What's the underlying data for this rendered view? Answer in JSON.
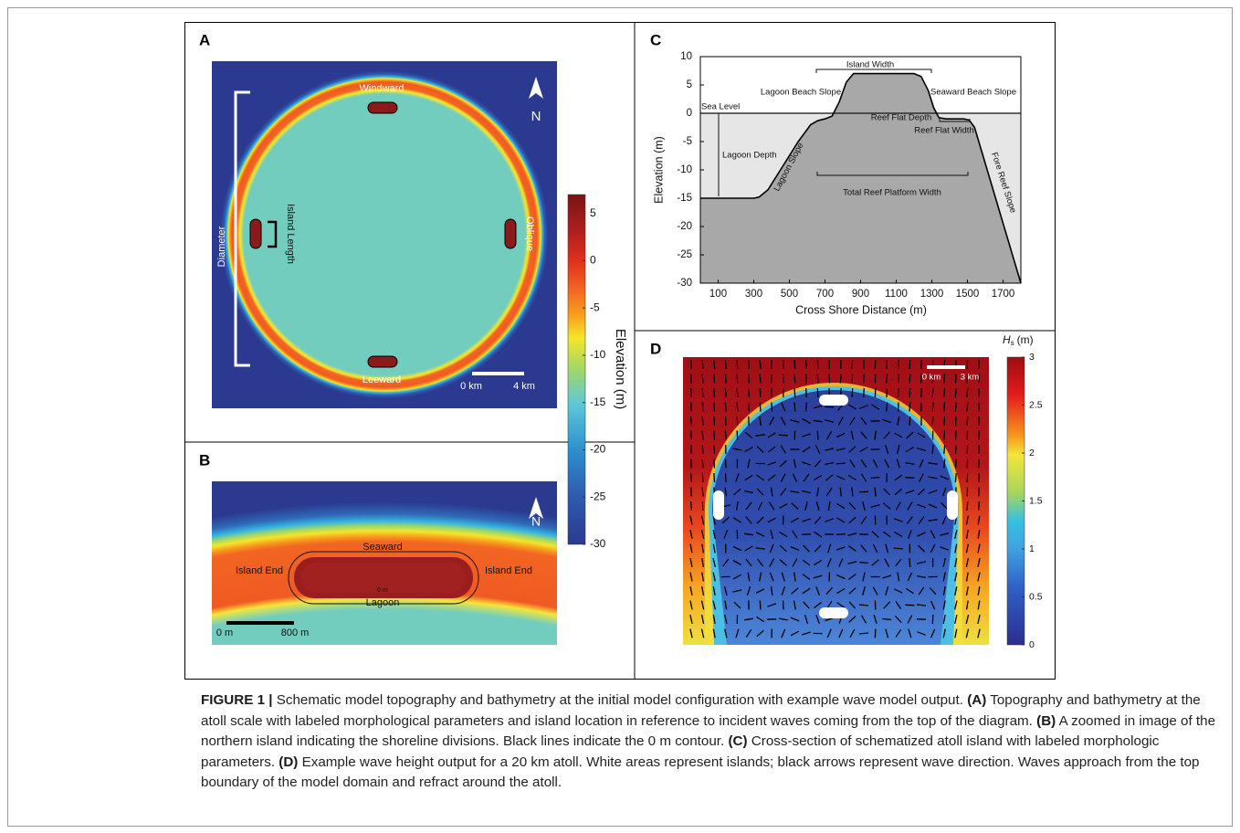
{
  "panel_a": {
    "letter": "A",
    "windward": "Windward",
    "leeward": "Leeward",
    "oblique": "Oblique",
    "island_length": "Island Length",
    "diameter": "Diameter",
    "north": "N",
    "scale_start": "0 km",
    "scale_end": "4 km"
  },
  "elevation_colorbar": {
    "label": "Elevation (m)",
    "lim": [
      -30,
      7
    ],
    "ticks": [
      5,
      0,
      -5,
      -10,
      -15,
      -20,
      -25,
      -30
    ]
  },
  "panel_b": {
    "letter": "B",
    "north": "N",
    "seaward": "Seaward",
    "lagoon": "Lagoon",
    "island_end_left": "Island End",
    "island_end_right": "Island End",
    "contour_label": "0 m",
    "scale_start": "0 m",
    "scale_end": "800 m"
  },
  "panel_c": {
    "letter": "C",
    "x_label": "Cross Shore Distance (m)",
    "y_label": "Elevation (m)",
    "xlim": [
      0,
      1800
    ],
    "ylim": [
      -30,
      10
    ],
    "xticks": [
      100,
      300,
      500,
      700,
      900,
      1100,
      1300,
      1500,
      1700
    ],
    "yticks": [
      10,
      5,
      0,
      -5,
      -10,
      -15,
      -20,
      -25,
      -30
    ],
    "sea_level": 0,
    "profile": {
      "x": [
        0,
        300,
        330,
        380,
        450,
        550,
        620,
        660,
        700,
        740,
        780,
        820,
        860,
        900,
        1200,
        1240,
        1280,
        1310,
        1340,
        1380,
        1480,
        1510,
        1540,
        1800
      ],
      "y": [
        -15,
        -15,
        -14.8,
        -13.5,
        -10,
        -5,
        -2,
        -1.3,
        -1,
        -0.5,
        2,
        5.5,
        7,
        7,
        7,
        6.5,
        4,
        1,
        -0.8,
        -1,
        -1,
        -1.2,
        -2.5,
        -30
      ]
    },
    "annotations": {
      "sea_level": "Sea Level",
      "lagoon_depth": "Lagoon Depth",
      "lagoon_slope": "Lagoon Slope",
      "island_width": "Island Width",
      "lagoon_beach_slope": "Lagoon Beach Slope",
      "seaward_beach_slope": "Seaward Beach Slope",
      "reef_flat_depth": "Reef Flat Depth",
      "reef_flat_width": "Reef Flat Width",
      "total_reef_platform_width": "Total Reef Platform Width",
      "fore_reef_slope": "Fore Reef Slope"
    }
  },
  "panel_d": {
    "letter": "D",
    "scale_start": "0 km",
    "scale_end": "3 km",
    "colorbar": {
      "symbol": "H",
      "subscript": "s",
      "unit": "(m)",
      "lim": [
        0,
        3
      ],
      "ticks": [
        0,
        0.5,
        1,
        1.5,
        2,
        2.5,
        3
      ]
    }
  },
  "caption": {
    "label": "FIGURE 1 |",
    "intro": "Schematic model topography and bathymetry at the initial model configuration with example wave model output.",
    "parts": [
      {
        "panel": "(A)",
        "text": "Topography and bathymetry at the atoll scale with labeled morphological parameters and island location in reference to incident waves coming from the top of the diagram."
      },
      {
        "panel": "(B)",
        "text": "A zoomed in image of the northern island indicating the shoreline divisions. Black lines indicate the 0 m contour."
      },
      {
        "panel": "(C)",
        "text": "Cross-section of schematized atoll island with labeled morphologic parameters."
      },
      {
        "panel": "(D)",
        "text": "Example wave height output for a 20 km atoll. White areas represent islands; black arrows represent wave direction. Waves approach from the top boundary of the model domain and refract around the atoll."
      }
    ]
  }
}
